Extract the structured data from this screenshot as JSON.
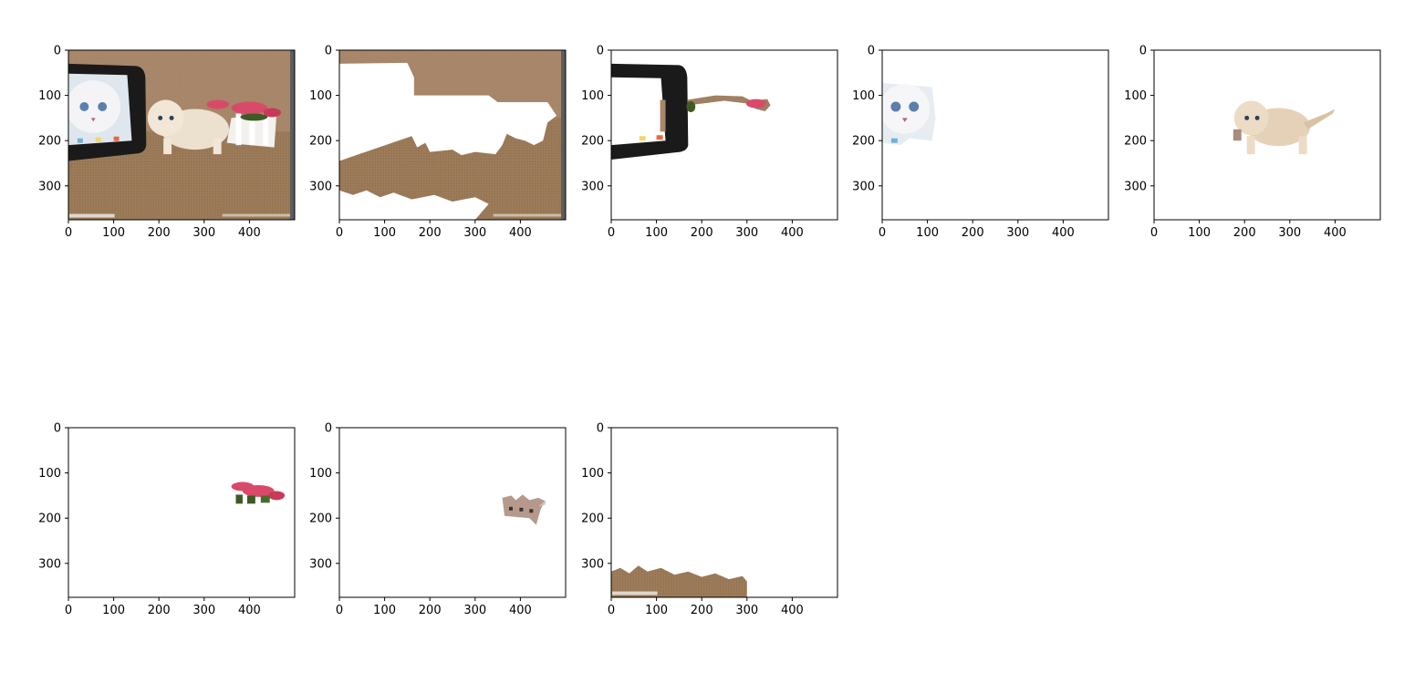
{
  "figure": {
    "rows": 2,
    "cols": 5,
    "panels": [
      {
        "content": "original-photo",
        "description": "kitten next to a tablet and a white picket fence with pink flowers on a carpeted floor"
      },
      {
        "content": "background-segment",
        "description": "carpet and wall with foreground objects removed (white)"
      },
      {
        "content": "tablet-segment",
        "description": "black tablet frame segment with stray flower edge"
      },
      {
        "content": "tablet-cat-face-segment",
        "description": "cat face shown on the tablet screen"
      },
      {
        "content": "kitten-segment",
        "description": "cream kitten"
      },
      {
        "content": "flowers-segment",
        "description": "pink flowers with leaves"
      },
      {
        "content": "fence-segment",
        "description": "small picket fence"
      },
      {
        "content": "floor-segment",
        "description": "carpet floor at the bottom"
      }
    ],
    "axes": {
      "x_ticks": [
        "0",
        "100",
        "200",
        "300",
        "400"
      ],
      "y_ticks": [
        "0",
        "100",
        "200",
        "300"
      ],
      "x_range": [
        0,
        500
      ],
      "y_range": [
        0,
        375
      ]
    },
    "colors": {
      "carpet": "#9b7a58",
      "carpet_dark": "#7d5e42",
      "wall": "#a8876a",
      "tablet": "#1a1a1a",
      "screen": "#dfe6ee",
      "kitten": "#e8d3b8",
      "flower": "#d94a6a",
      "leaf": "#3f5a25",
      "fence": "#b59a8c"
    }
  }
}
